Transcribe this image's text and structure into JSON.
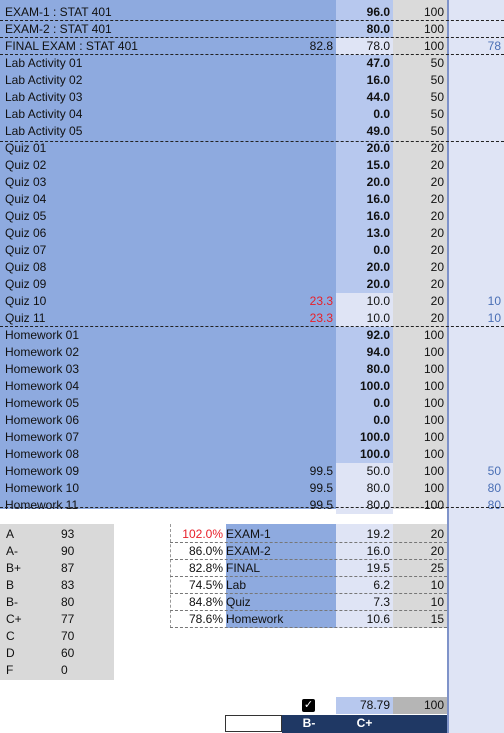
{
  "colors": {
    "name_bg": "#8eaadf",
    "score_bg": "#b7c8ee",
    "points_bg": "#dadada",
    "side_bg": "#dfe4f5",
    "dark_bar": "#1f3864"
  },
  "rows": [
    {
      "name": "EXAM-1 : STAT 401",
      "score": "96.0",
      "max": "100",
      "bold": true
    },
    {
      "name": "EXAM-2 : STAT 401",
      "score": "80.0",
      "max": "100",
      "bold": true
    },
    {
      "name": "FINAL EXAM : STAT 401",
      "adj": "82.8",
      "score": "78.0",
      "max": "100",
      "side": "78",
      "bold": false
    },
    {
      "name": "Lab Activity 01",
      "score": "47.0",
      "max": "50",
      "bold": true
    },
    {
      "name": "Lab Activity 02",
      "score": "16.0",
      "max": "50",
      "bold": true
    },
    {
      "name": "Lab Activity 03",
      "score": "44.0",
      "max": "50",
      "bold": true
    },
    {
      "name": "Lab Activity 04",
      "score": "0.0",
      "max": "50",
      "bold": true
    },
    {
      "name": "Lab Activity 05",
      "score": "49.0",
      "max": "50",
      "bold": true
    },
    {
      "name": "Quiz 01",
      "score": "20.0",
      "max": "20",
      "bold": true
    },
    {
      "name": "Quiz 02",
      "score": "15.0",
      "max": "20",
      "bold": true
    },
    {
      "name": "Quiz 03",
      "score": "20.0",
      "max": "20",
      "bold": true
    },
    {
      "name": "Quiz 04",
      "score": "16.0",
      "max": "20",
      "bold": true
    },
    {
      "name": "Quiz 05",
      "score": "16.0",
      "max": "20",
      "bold": true
    },
    {
      "name": "Quiz 06",
      "score": "13.0",
      "max": "20",
      "bold": true
    },
    {
      "name": "Quiz 07",
      "score": "0.0",
      "max": "20",
      "bold": true
    },
    {
      "name": "Quiz 08",
      "score": "20.0",
      "max": "20",
      "bold": true
    },
    {
      "name": "Quiz 09",
      "score": "20.0",
      "max": "20",
      "bold": true
    },
    {
      "name": "Quiz 10",
      "adj": "23.3",
      "adj_red": true,
      "score": "10.0",
      "max": "20",
      "side": "10",
      "bold": false
    },
    {
      "name": "Quiz 11",
      "adj": "23.3",
      "adj_red": true,
      "score": "10.0",
      "max": "20",
      "side": "10",
      "bold": false
    },
    {
      "name": "Homework 01",
      "score": "92.0",
      "max": "100",
      "bold": true
    },
    {
      "name": "Homework 02",
      "score": "94.0",
      "max": "100",
      "bold": true
    },
    {
      "name": "Homework 03",
      "score": "80.0",
      "max": "100",
      "bold": true
    },
    {
      "name": "Homework 04",
      "score": "100.0",
      "max": "100",
      "bold": true
    },
    {
      "name": "Homework 05",
      "score": "0.0",
      "max": "100",
      "bold": true
    },
    {
      "name": "Homework 06",
      "score": "0.0",
      "max": "100",
      "bold": true
    },
    {
      "name": "Homework 07",
      "score": "100.0",
      "max": "100",
      "bold": true
    },
    {
      "name": "Homework 08",
      "score": "100.0",
      "max": "100",
      "bold": true
    },
    {
      "name": "Homework 09",
      "adj": "99.5",
      "score": "50.0",
      "max": "100",
      "side": "50",
      "bold": false
    },
    {
      "name": "Homework 10",
      "adj": "99.5",
      "score": "80.0",
      "max": "100",
      "side": "80",
      "bold": false
    },
    {
      "name": "Homework 11",
      "adj": "99.5",
      "score": "80.0",
      "max": "100",
      "side": "80",
      "bold": false
    }
  ],
  "grade_scale": [
    {
      "letter": "A",
      "min": "93"
    },
    {
      "letter": "A-",
      "min": "90"
    },
    {
      "letter": "B+",
      "min": "87"
    },
    {
      "letter": "B",
      "min": "83"
    },
    {
      "letter": "B-",
      "min": "80"
    },
    {
      "letter": "C+",
      "min": "77"
    },
    {
      "letter": "C",
      "min": "70"
    },
    {
      "letter": "D",
      "min": "60"
    },
    {
      "letter": "F",
      "min": "0"
    }
  ],
  "categories": [
    {
      "pct": "102.0%",
      "pct_red": true,
      "name": "EXAM-1",
      "score": "19.2",
      "weight": "20"
    },
    {
      "pct": "86.0%",
      "pct_red": false,
      "name": "EXAM-2",
      "score": "16.0",
      "weight": "20"
    },
    {
      "pct": "82.8%",
      "pct_red": false,
      "name": "FINAL",
      "score": "19.5",
      "weight": "25"
    },
    {
      "pct": "74.5%",
      "pct_red": false,
      "name": "Lab",
      "score": "6.2",
      "weight": "10"
    },
    {
      "pct": "84.8%",
      "pct_red": false,
      "name": "Quiz",
      "score": "7.3",
      "weight": "10"
    },
    {
      "pct": "78.6%",
      "pct_red": false,
      "name": "Homework",
      "score": "10.6",
      "weight": "15"
    }
  ],
  "total": {
    "score": "78.79",
    "max": "100",
    "checkbox_checked": true
  },
  "bottom": {
    "grade1": "B-",
    "grade2": "C+"
  }
}
